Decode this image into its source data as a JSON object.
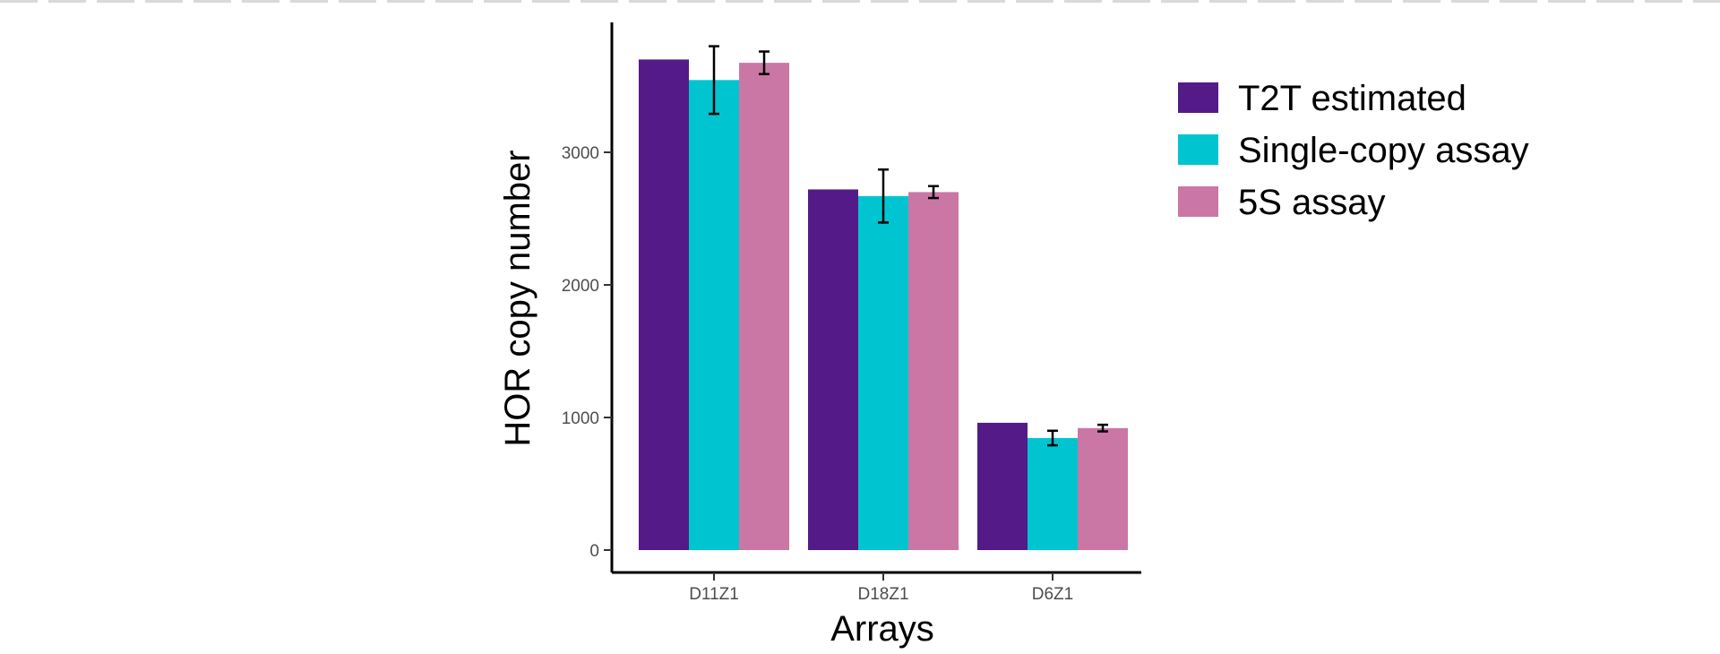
{
  "chart_data": {
    "type": "bar",
    "title": "",
    "xlabel": "Arrays",
    "ylabel": "HOR copy number",
    "categories": [
      "D11Z1",
      "D18Z1",
      "D6Z1"
    ],
    "ylim": [
      0,
      3900
    ],
    "yticks": [
      0,
      1000,
      2000,
      3000
    ],
    "grid": false,
    "legend_position": "right",
    "series": [
      {
        "name": "T2T estimated",
        "color": "#541a87",
        "values": [
          3700,
          2720,
          960
        ],
        "err": [
          0,
          0,
          0
        ]
      },
      {
        "name": "Single-copy assay",
        "color": "#00c5d0",
        "values": [
          3545,
          2670,
          845
        ],
        "err": [
          255,
          200,
          55
        ]
      },
      {
        "name": "5S assay",
        "color": "#cb77a5",
        "values": [
          3675,
          2700,
          920
        ],
        "err": [
          85,
          45,
          25
        ]
      }
    ]
  }
}
